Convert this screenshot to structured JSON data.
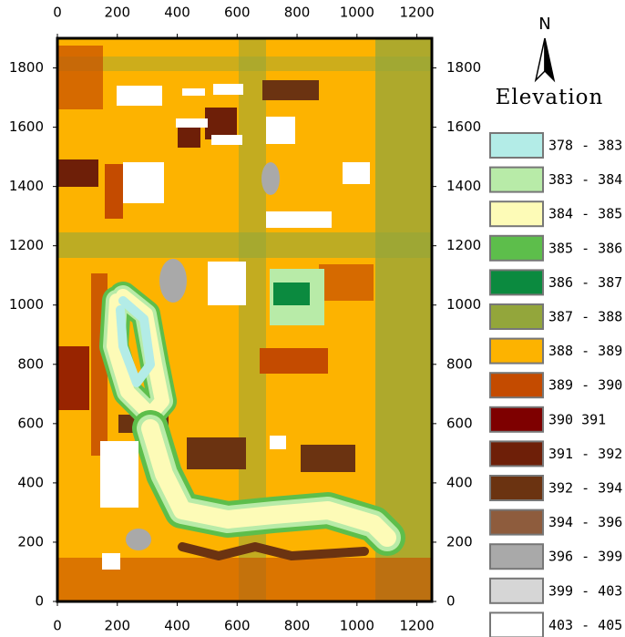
{
  "map": {
    "north": "N",
    "title": "Elevation",
    "xlim": [
      0,
      1250
    ],
    "ylim": [
      0,
      1900
    ],
    "xticks": [
      0,
      200,
      400,
      600,
      800,
      1000,
      1200
    ],
    "yticks": [
      0,
      200,
      400,
      600,
      800,
      1000,
      1200,
      1400,
      1600,
      1800
    ],
    "legend": [
      {
        "label": "378 - 383",
        "color": "#b3ece7"
      },
      {
        "label": "383 - 384",
        "color": "#b8eba8"
      },
      {
        "label": "384 - 385",
        "color": "#fdfbb7"
      },
      {
        "label": "385 - 386",
        "color": "#5dbe4b"
      },
      {
        "label": "386 - 387",
        "color": "#0b8a3f"
      },
      {
        "label": "387 - 388",
        "color": "#93a63b"
      },
      {
        "label": "388 - 389",
        "color": "#fdb300"
      },
      {
        "label": "389 - 390",
        "color": "#c44b00"
      },
      {
        "label": "390 391",
        "color": "#7e0000"
      },
      {
        "label": "391 - 392",
        "color": "#6e1f08"
      },
      {
        "label": "392 - 394",
        "color": "#6b3311"
      },
      {
        "label": "394 - 396",
        "color": "#8e5c3d"
      },
      {
        "label": "396 - 399",
        "color": "#a9a9a9"
      },
      {
        "label": "399 - 403",
        "color": "#d6d6d6"
      },
      {
        "label": "403 - 405",
        "color": "#ffffff"
      }
    ]
  }
}
